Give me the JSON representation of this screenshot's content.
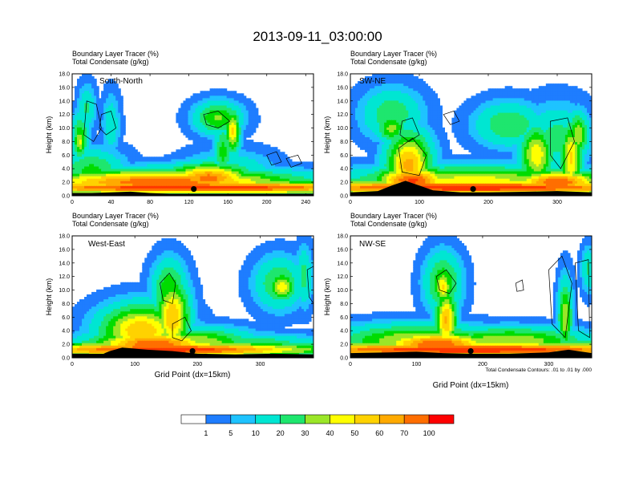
{
  "figure_title": "2013-09-11_03:00:00",
  "colors": {
    "bins": [
      "#ffffff",
      "#1e7dff",
      "#1ec3ff",
      "#00e6d2",
      "#1ee66e",
      "#00dc00",
      "#9be628",
      "#ffff00",
      "#ffd200",
      "#ffaa00",
      "#ff6e00",
      "#ff3700",
      "#ff0000"
    ],
    "contour": "#000000",
    "marker": "#000000"
  },
  "colorbar": {
    "labels": [
      "1",
      "5",
      "10",
      "20",
      "30",
      "40",
      "50",
      "60",
      "70",
      "100"
    ]
  },
  "footnote": "Total Condensate Contours: .01 to .01 by .000",
  "chart_data": [
    {
      "type": "heatmap",
      "panel_label": "South-North",
      "title_line1": "Boundary Layer Tracer    (%)",
      "title_line2": "Total Condensate    (g/kg)",
      "ylabel": "Height (km)",
      "xlabel": "",
      "xlim": [
        0,
        248
      ],
      "ylim": [
        0,
        18
      ],
      "xticks": [
        "0",
        "40",
        "80",
        "120",
        "160",
        "200",
        "240"
      ],
      "yticks": [
        "0.0",
        "2.0",
        "4.0",
        "6.0",
        "8.0",
        "10.0",
        "12.0",
        "14.0",
        "16.0",
        "18.0"
      ],
      "terrain": [
        [
          0,
          0.4
        ],
        [
          20,
          0.4
        ],
        [
          40,
          0.5
        ],
        [
          60,
          0.6
        ],
        [
          80,
          0.4
        ],
        [
          100,
          0.3
        ],
        [
          140,
          0.3
        ],
        [
          180,
          0.3
        ],
        [
          220,
          0.3
        ],
        [
          248,
          0.3
        ]
      ],
      "marker": [
        125,
        1.0
      ],
      "blobs": [
        [
          8,
          8.5,
          8,
          3.2,
          40
        ],
        [
          15,
          13,
          8,
          3,
          22
        ],
        [
          40,
          10.5,
          8,
          4,
          18
        ],
        [
          20,
          3.5,
          30,
          3,
          34
        ],
        [
          60,
          2.2,
          30,
          2,
          24
        ],
        [
          140,
          1.6,
          140,
          2,
          30
        ],
        [
          160,
          3,
          40,
          3,
          28
        ],
        [
          155,
          6.5,
          8,
          4,
          34
        ],
        [
          150,
          11.5,
          22,
          2.2,
          42
        ],
        [
          125,
          1.2,
          240,
          0.9,
          100
        ],
        [
          90,
          2.0,
          130,
          1.7,
          88
        ],
        [
          140,
          2.6,
          40,
          1.9,
          85
        ],
        [
          165,
          9.5,
          7,
          3,
          62
        ],
        [
          8,
          8.0,
          6,
          2,
          52
        ]
      ],
      "contours": [
        [
          [
            15,
            14
          ],
          [
            25,
            13.5
          ],
          [
            30,
            10
          ],
          [
            22,
            8
          ],
          [
            12,
            9
          ]
        ],
        [
          [
            30,
            12
          ],
          [
            40,
            12.5
          ],
          [
            45,
            10
          ],
          [
            35,
            9
          ],
          [
            28,
            10
          ]
        ],
        [
          [
            135,
            12
          ],
          [
            150,
            12.5
          ],
          [
            162,
            11
          ],
          [
            150,
            10
          ],
          [
            138,
            10.5
          ]
        ],
        [
          [
            200,
            6
          ],
          [
            210,
            6.5
          ],
          [
            215,
            5
          ],
          [
            205,
            4.5
          ]
        ],
        [
          [
            220,
            5.5
          ],
          [
            232,
            6
          ],
          [
            236,
            4.8
          ],
          [
            225,
            4.2
          ]
        ]
      ]
    },
    {
      "type": "heatmap",
      "panel_label": "SW-NE",
      "title_line1": "Boundary Layer Tracer    (%)",
      "title_line2": "Total Condensate    (g/kg)",
      "ylabel": "Height (km)",
      "xlabel": "",
      "xlim": [
        0,
        350
      ],
      "ylim": [
        0,
        18
      ],
      "xticks": [
        "0",
        "100",
        "200",
        "300"
      ],
      "yticks": [
        "0.0",
        "2.0",
        "4.0",
        "6.0",
        "8.0",
        "10.0",
        "12.0",
        "14.0",
        "16.0",
        "18.0"
      ],
      "terrain": [
        [
          0,
          0.5
        ],
        [
          40,
          0.7
        ],
        [
          60,
          1.5
        ],
        [
          80,
          2.2
        ],
        [
          100,
          1.5
        ],
        [
          120,
          0.8
        ],
        [
          160,
          0.5
        ],
        [
          200,
          0.5
        ],
        [
          260,
          0.6
        ],
        [
          300,
          0.7
        ],
        [
          350,
          0.5
        ]
      ],
      "marker": [
        178,
        1.0
      ],
      "blobs": [
        [
          60,
          12,
          40,
          3.5,
          28
        ],
        [
          230,
          10.5,
          45,
          3,
          30
        ],
        [
          300,
          8.5,
          45,
          4.5,
          24
        ],
        [
          85,
          4.5,
          30,
          4.5,
          74
        ],
        [
          180,
          2.2,
          170,
          2,
          55
        ],
        [
          270,
          6,
          22,
          4,
          58
        ],
        [
          320,
          5.5,
          14,
          5,
          62
        ],
        [
          175,
          1.2,
          340,
          1,
          100
        ],
        [
          90,
          2.2,
          50,
          2,
          92
        ],
        [
          300,
          2.0,
          60,
          1.6,
          90
        ],
        [
          60,
          10,
          20,
          2,
          44
        ],
        [
          330,
          9,
          14,
          3,
          48
        ]
      ],
      "contours": [
        [
          [
            75,
            11
          ],
          [
            90,
            11.5
          ],
          [
            100,
            9
          ],
          [
            85,
            8
          ],
          [
            72,
            9
          ]
        ],
        [
          [
            70,
            7
          ],
          [
            90,
            8.5
          ],
          [
            110,
            6
          ],
          [
            100,
            3
          ],
          [
            75,
            3.5
          ]
        ],
        [
          [
            290,
            11
          ],
          [
            315,
            11.5
          ],
          [
            325,
            8
          ],
          [
            305,
            4
          ],
          [
            290,
            6
          ]
        ],
        [
          [
            135,
            12
          ],
          [
            150,
            12.5
          ],
          [
            158,
            11
          ],
          [
            145,
            10.5
          ]
        ]
      ]
    },
    {
      "type": "heatmap",
      "panel_label": "West-East",
      "title_line1": "Boundary Layer Tracer    (%)",
      "title_line2": "Total Condensate    (g/kg)",
      "ylabel": "Height (km)",
      "xlabel": "Grid Point (dx=15km)",
      "xlim": [
        0,
        385
      ],
      "ylim": [
        0,
        18
      ],
      "xticks": [
        "0",
        "100",
        "200",
        "300"
      ],
      "yticks": [
        "0.0",
        "2.0",
        "4.0",
        "6.0",
        "8.0",
        "10.0",
        "12.0",
        "14.0",
        "16.0",
        "18.0"
      ],
      "terrain": [
        [
          0,
          0.6
        ],
        [
          50,
          0.6
        ],
        [
          60,
          1.0
        ],
        [
          80,
          1.5
        ],
        [
          120,
          1.2
        ],
        [
          160,
          1.0
        ],
        [
          200,
          0.6
        ],
        [
          260,
          0.5
        ],
        [
          320,
          0.6
        ],
        [
          385,
          0.5
        ]
      ],
      "marker": [
        192,
        1.0
      ],
      "blobs": [
        [
          155,
          10,
          25,
          4,
          40
        ],
        [
          330,
          11,
          35,
          3.5,
          32
        ],
        [
          110,
          4,
          60,
          3.5,
          70
        ],
        [
          160,
          6,
          25,
          5,
          70
        ],
        [
          200,
          2.2,
          80,
          2,
          50
        ],
        [
          290,
          1.8,
          100,
          1.5,
          32
        ],
        [
          150,
          1.2,
          240,
          1.0,
          100
        ],
        [
          130,
          2.0,
          90,
          1.8,
          90
        ],
        [
          60,
          3,
          15,
          2.5,
          40
        ],
        [
          335,
          10.5,
          20,
          2,
          56
        ],
        [
          370,
          12,
          12,
          4,
          24
        ]
      ],
      "contours": [
        [
          [
            140,
            11
          ],
          [
            155,
            12.5
          ],
          [
            165,
            11
          ],
          [
            160,
            8
          ],
          [
            145,
            8.5
          ]
        ],
        [
          [
            160,
            5
          ],
          [
            180,
            6
          ],
          [
            190,
            4
          ],
          [
            175,
            2.5
          ],
          [
            160,
            3
          ]
        ],
        [
          [
            375,
            13
          ],
          [
            385,
            13.5
          ],
          [
            385,
            8
          ],
          [
            378,
            9
          ]
        ]
      ]
    },
    {
      "type": "heatmap",
      "panel_label": "NW-SE",
      "title_line1": "Boundary Layer Tracer    (%)",
      "title_line2": "Total Condensate    (g/kg)",
      "ylabel": "Height (km)",
      "xlabel": "Grid Point (dx=15km)",
      "xlim": [
        0,
        365
      ],
      "ylim": [
        0,
        18
      ],
      "xticks": [
        "0",
        "100",
        "200",
        "300"
      ],
      "yticks": [
        "0.0",
        "2.0",
        "4.0",
        "6.0",
        "8.0",
        "10.0",
        "12.0",
        "14.0",
        "16.0",
        "18.0"
      ],
      "terrain": [
        [
          0,
          0.7
        ],
        [
          60,
          0.8
        ],
        [
          100,
          0.9
        ],
        [
          140,
          0.7
        ],
        [
          180,
          0.6
        ],
        [
          240,
          0.6
        ],
        [
          300,
          0.8
        ],
        [
          330,
          1.2
        ],
        [
          365,
          0.7
        ]
      ],
      "marker": [
        182,
        1.0
      ],
      "blobs": [
        [
          140,
          11,
          25,
          4,
          40
        ],
        [
          145,
          5.5,
          15,
          4,
          72
        ],
        [
          100,
          2.5,
          110,
          2.2,
          52
        ],
        [
          240,
          2.5,
          110,
          1.8,
          50
        ],
        [
          180,
          1.2,
          360,
          1.0,
          100
        ],
        [
          130,
          2.0,
          80,
          1.7,
          90
        ],
        [
          325,
          6,
          10,
          5,
          48
        ],
        [
          360,
          13,
          10,
          3,
          22
        ],
        [
          140,
          10.5,
          12,
          2.5,
          62
        ]
      ],
      "contours": [
        [
          [
            130,
            12
          ],
          [
            145,
            13
          ],
          [
            160,
            11
          ],
          [
            150,
            9.5
          ],
          [
            135,
            10
          ]
        ],
        [
          [
            300,
            13
          ],
          [
            320,
            15
          ],
          [
            335,
            11
          ],
          [
            325,
            3
          ],
          [
            305,
            5
          ]
        ],
        [
          [
            340,
            14
          ],
          [
            360,
            14.5
          ],
          [
            362,
            3
          ],
          [
            345,
            4
          ]
        ],
        [
          [
            250,
            11
          ],
          [
            260,
            11.5
          ],
          [
            262,
            10
          ],
          [
            252,
            9.8
          ]
        ]
      ]
    }
  ]
}
